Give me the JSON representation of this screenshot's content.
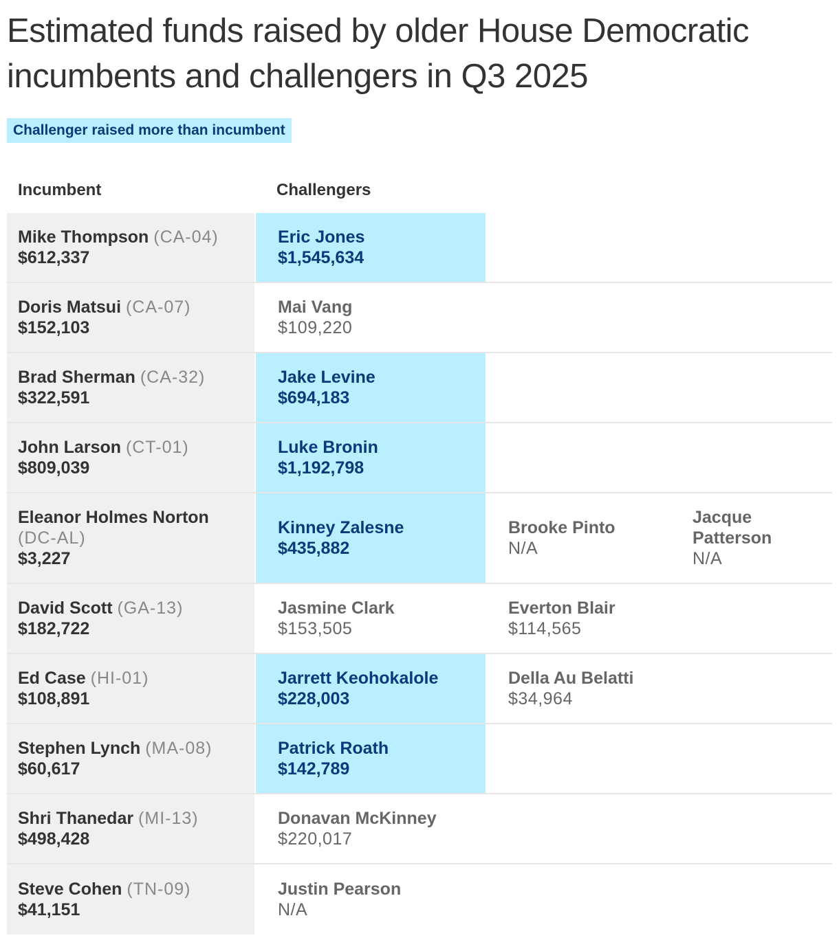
{
  "title": "Estimated funds raised by older House Democratic incumbents and challengers in Q3 2025",
  "legend": "Challenger raised more than incumbent",
  "colors": {
    "highlight": "#b9efff",
    "highlight_text": "#0b3a78",
    "incumbent_bg": "#eff0f2"
  },
  "columns": {
    "incumbent": "Incumbent",
    "challengers": "Challengers"
  },
  "chart_data": {
    "type": "table",
    "rows": [
      {
        "incumbent": {
          "name": "Mike Thompson",
          "district": "(CA-04)",
          "amount": "$612,337"
        },
        "challengers": [
          {
            "name": "Eric Jones",
            "amount": "$1,545,634",
            "raised_more": true
          }
        ]
      },
      {
        "incumbent": {
          "name": "Doris Matsui",
          "district": "(CA-07)",
          "amount": "$152,103"
        },
        "challengers": [
          {
            "name": "Mai Vang",
            "amount": "$109,220",
            "raised_more": false
          }
        ]
      },
      {
        "incumbent": {
          "name": "Brad Sherman",
          "district": "(CA-32)",
          "amount": "$322,591"
        },
        "challengers": [
          {
            "name": "Jake Levine",
            "amount": "$694,183",
            "raised_more": true
          }
        ]
      },
      {
        "incumbent": {
          "name": "John Larson",
          "district": "(CT-01)",
          "amount": "$809,039"
        },
        "challengers": [
          {
            "name": "Luke Bronin",
            "amount": "$1,192,798",
            "raised_more": true
          }
        ]
      },
      {
        "incumbent": {
          "name": "Eleanor Holmes Norton",
          "district": "(DC-AL)",
          "amount": "$3,227"
        },
        "challengers": [
          {
            "name": "Kinney Zalesne",
            "amount": "$435,882",
            "raised_more": true
          },
          {
            "name": "Brooke Pinto",
            "amount": "N/A",
            "raised_more": false
          },
          {
            "name": "Jacque Patterson",
            "amount": "N/A",
            "raised_more": false
          }
        ]
      },
      {
        "incumbent": {
          "name": "David Scott",
          "district": "(GA-13)",
          "amount": "$182,722"
        },
        "challengers": [
          {
            "name": "Jasmine Clark",
            "amount": "$153,505",
            "raised_more": false
          },
          {
            "name": "Everton Blair",
            "amount": "$114,565",
            "raised_more": false
          }
        ]
      },
      {
        "incumbent": {
          "name": "Ed Case",
          "district": "(HI-01)",
          "amount": "$108,891"
        },
        "challengers": [
          {
            "name": "Jarrett Keohokalole",
            "amount": "$228,003",
            "raised_more": true
          },
          {
            "name": "Della Au Belatti",
            "amount": "$34,964",
            "raised_more": false
          }
        ]
      },
      {
        "incumbent": {
          "name": "Stephen Lynch",
          "district": "(MA-08)",
          "amount": "$60,617"
        },
        "challengers": [
          {
            "name": "Patrick Roath",
            "amount": "$142,789",
            "raised_more": true
          }
        ]
      },
      {
        "incumbent": {
          "name": "Shri Thanedar",
          "district": "(MI-13)",
          "amount": "$498,428"
        },
        "challengers": [
          {
            "name": "Donavan McKinney",
            "amount": "$220,017",
            "raised_more": false
          }
        ]
      },
      {
        "incumbent": {
          "name": "Steve Cohen",
          "district": "(TN-09)",
          "amount": "$41,151"
        },
        "challengers": [
          {
            "name": "Justin Pearson",
            "amount": "N/A",
            "raised_more": false
          }
        ]
      }
    ]
  }
}
